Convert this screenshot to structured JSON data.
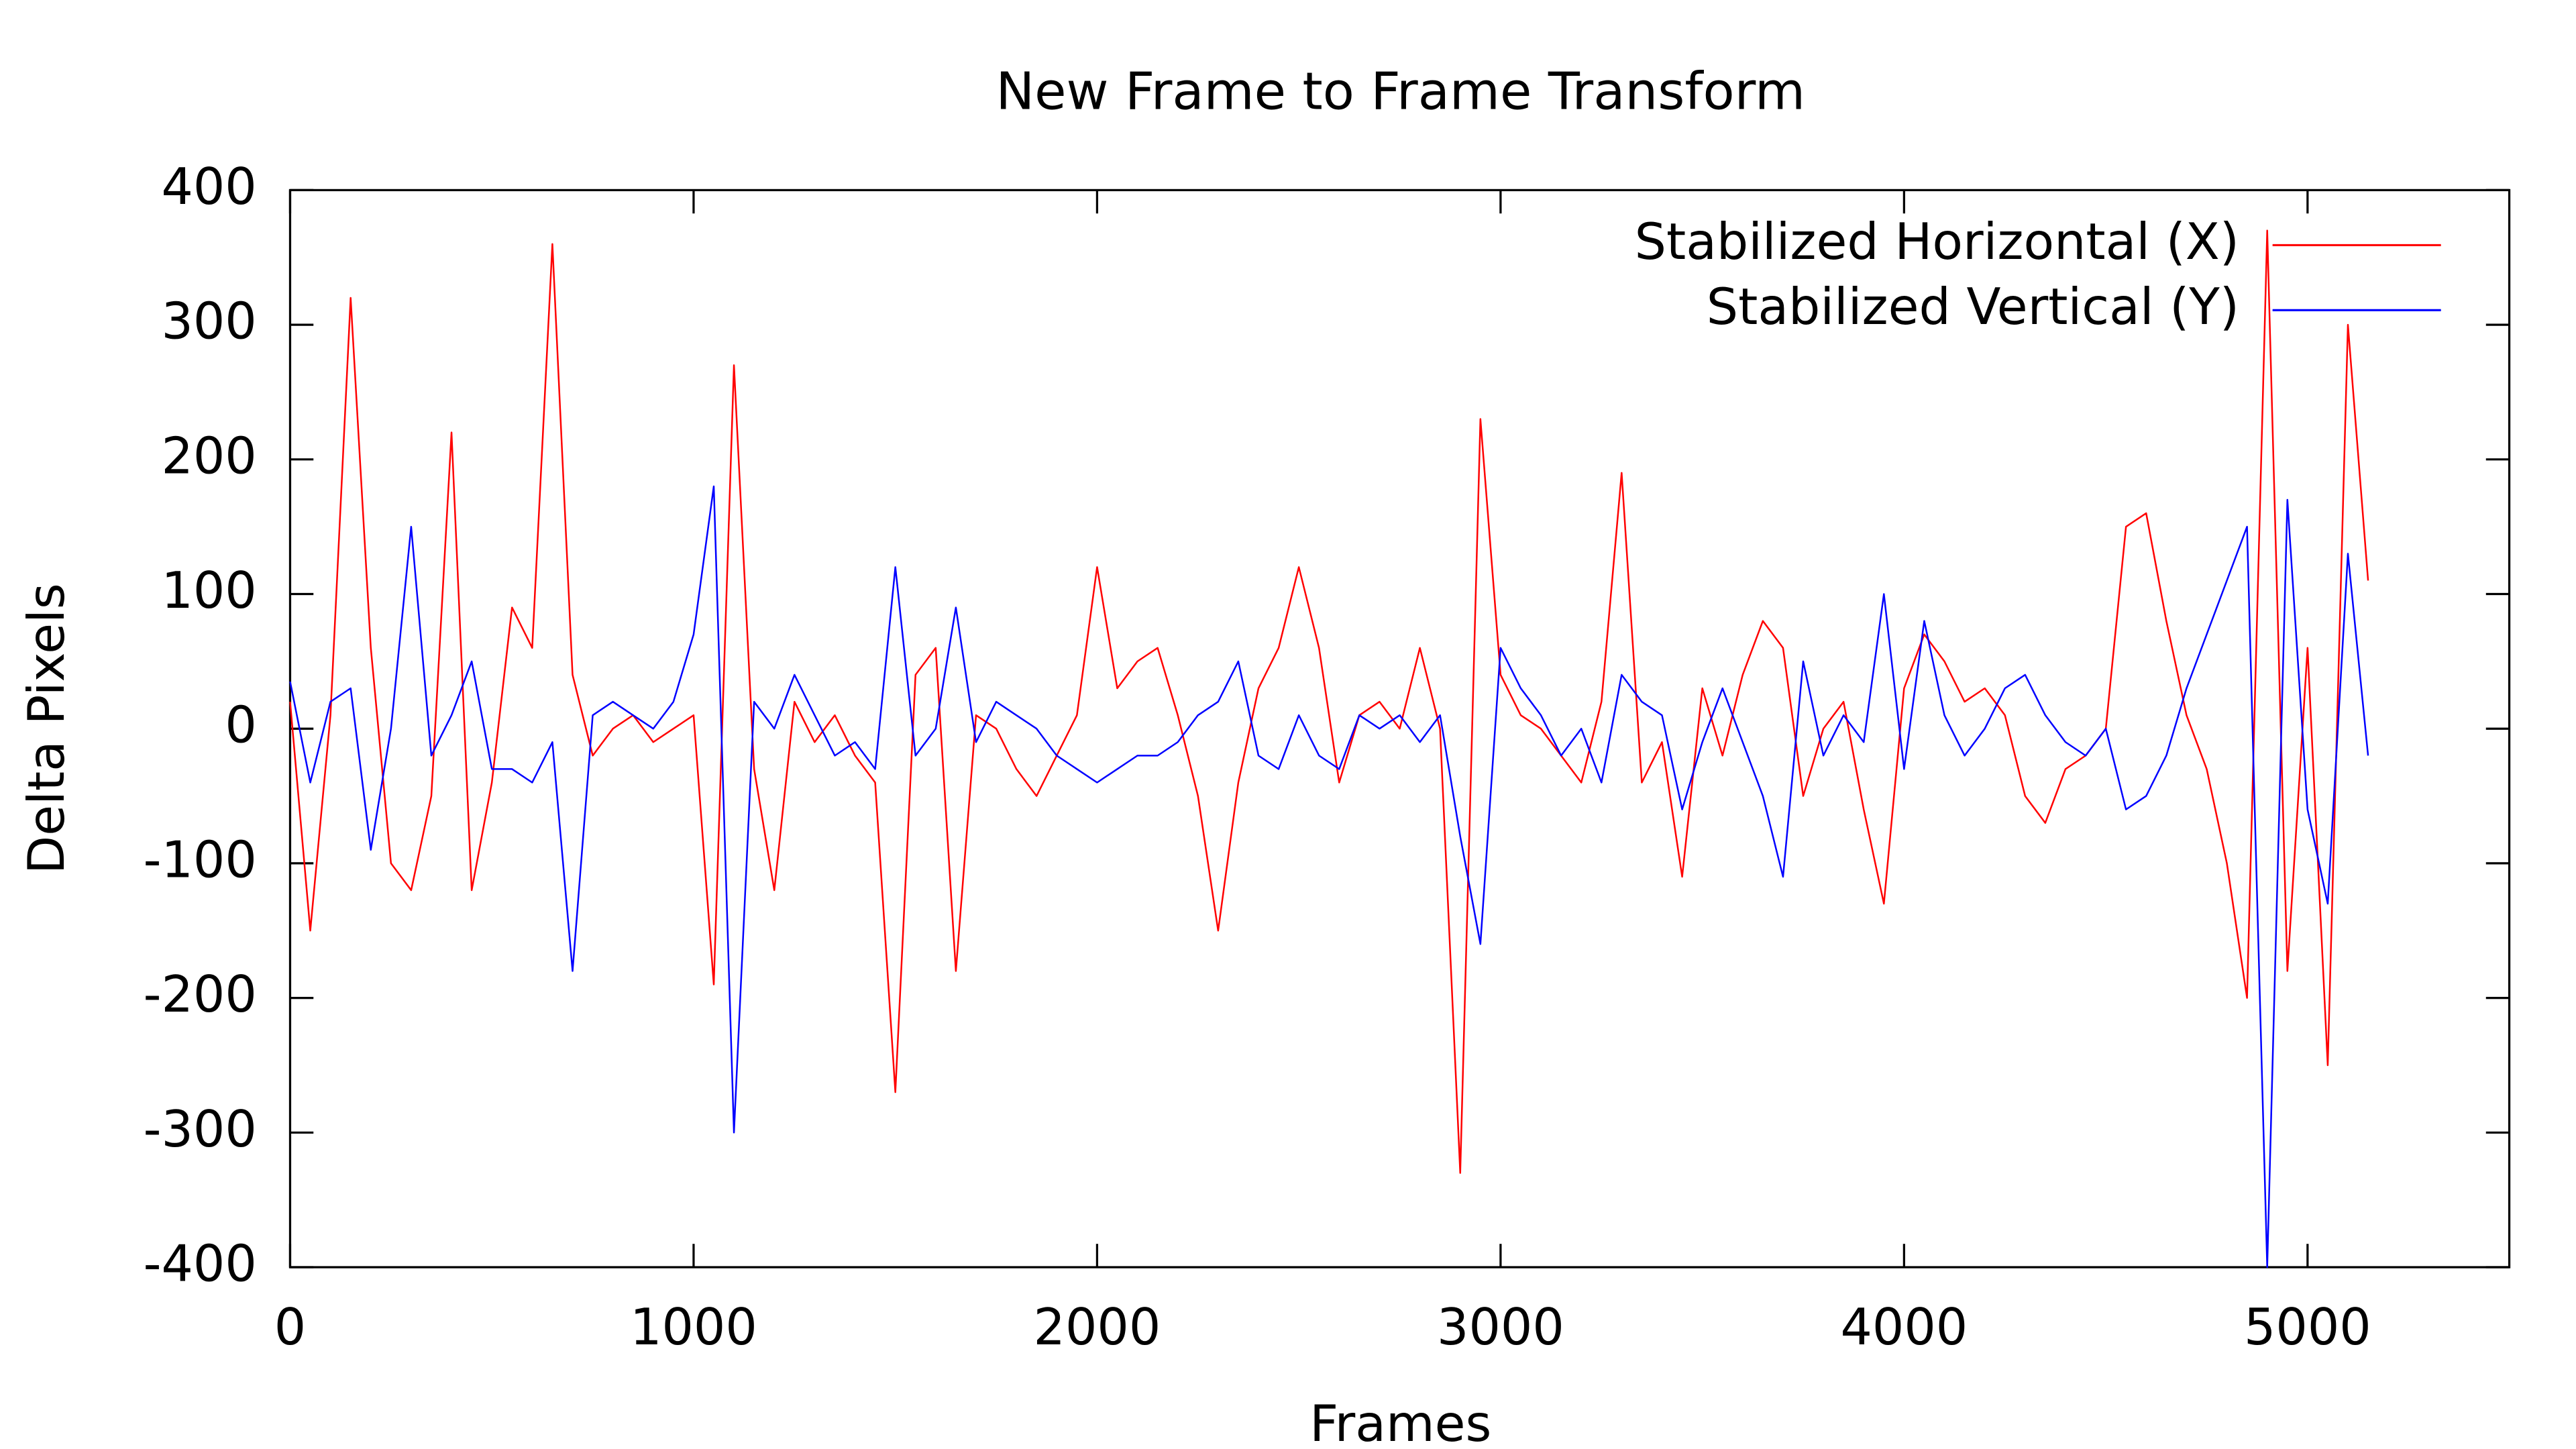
{
  "chart_data": {
    "type": "line",
    "title": "New Frame to Frame Transform",
    "x_label": "Frames",
    "y_label": "Delta Pixels",
    "xlim": [
      0,
      5500
    ],
    "xticks": [
      0,
      1000,
      2000,
      3000,
      4000,
      5000
    ],
    "ylim": [
      -400,
      400
    ],
    "yticks": [
      -400,
      -300,
      -200,
      -100,
      0,
      100,
      200,
      300,
      400
    ],
    "legend": "top-right",
    "x": [
      0,
      50,
      100,
      150,
      200,
      250,
      300,
      350,
      400,
      450,
      500,
      550,
      600,
      650,
      700,
      750,
      800,
      850,
      900,
      950,
      1000,
      1050,
      1100,
      1150,
      1200,
      1250,
      1300,
      1350,
      1400,
      1450,
      1500,
      1550,
      1600,
      1650,
      1700,
      1750,
      1800,
      1850,
      1900,
      1950,
      2000,
      2050,
      2100,
      2150,
      2200,
      2250,
      2300,
      2350,
      2400,
      2450,
      2500,
      2550,
      2600,
      2650,
      2700,
      2750,
      2800,
      2850,
      2900,
      2950,
      3000,
      3050,
      3100,
      3150,
      3200,
      3250,
      3300,
      3350,
      3400,
      3450,
      3500,
      3550,
      3600,
      3650,
      3700,
      3750,
      3800,
      3850,
      3900,
      3950,
      4000,
      4050,
      4100,
      4150,
      4200,
      4250,
      4300,
      4350,
      4400,
      4450,
      4500,
      4550,
      4600,
      4650,
      4700,
      4750,
      4800,
      4850,
      4900,
      4950,
      5000,
      5050,
      5100,
      5150
    ],
    "series": [
      {
        "name": "Stabilized Horizontal (X)",
        "color": "#ff0000",
        "values": [
          20,
          -150,
          10,
          320,
          60,
          -100,
          -120,
          -50,
          220,
          -120,
          -40,
          90,
          60,
          360,
          40,
          -20,
          0,
          10,
          -10,
          0,
          10,
          -190,
          270,
          -30,
          -120,
          20,
          -10,
          10,
          -20,
          -40,
          -270,
          40,
          60,
          -180,
          10,
          0,
          -30,
          -50,
          -20,
          10,
          120,
          30,
          50,
          60,
          10,
          -50,
          -150,
          -40,
          30,
          60,
          120,
          60,
          -40,
          10,
          20,
          0,
          60,
          0,
          -330,
          230,
          40,
          10,
          0,
          -20,
          -40,
          20,
          190,
          -40,
          -10,
          -110,
          30,
          -20,
          40,
          80,
          60,
          -50,
          0,
          20,
          -60,
          -130,
          30,
          70,
          50,
          20,
          30,
          10,
          -50,
          -70,
          -30,
          -20,
          0,
          150,
          160,
          80,
          10,
          -30,
          -100,
          -200,
          370,
          -180,
          60,
          -250,
          300,
          110
        ]
      },
      {
        "name": "Stabilized Vertical (Y)",
        "color": "#0000ff",
        "values": [
          35,
          -40,
          20,
          30,
          -90,
          0,
          150,
          -20,
          10,
          50,
          -30,
          -30,
          -40,
          -10,
          -180,
          10,
          20,
          10,
          0,
          20,
          70,
          180,
          -300,
          20,
          0,
          40,
          10,
          -20,
          -10,
          -30,
          120,
          -20,
          0,
          90,
          -10,
          20,
          10,
          0,
          -20,
          -30,
          -40,
          -30,
          -20,
          -20,
          -10,
          10,
          20,
          50,
          -20,
          -30,
          10,
          -20,
          -30,
          10,
          0,
          10,
          -10,
          10,
          -80,
          -160,
          60,
          30,
          10,
          -20,
          0,
          -40,
          40,
          20,
          10,
          -60,
          -10,
          30,
          -10,
          -50,
          -110,
          50,
          -20,
          10,
          -10,
          100,
          -30,
          80,
          10,
          -20,
          0,
          30,
          40,
          10,
          -10,
          -20,
          0,
          -60,
          -50,
          -20,
          30,
          70,
          110,
          150,
          -400,
          170,
          -60,
          -130,
          130,
          -20
        ]
      }
    ]
  }
}
